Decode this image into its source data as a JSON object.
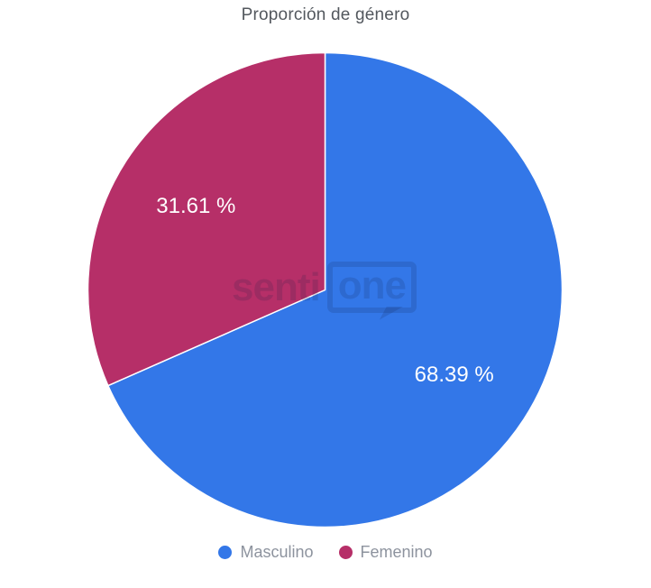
{
  "title": "Proporción de género",
  "watermark": {
    "part1": "senti",
    "part2": "one"
  },
  "legend": {
    "items": [
      {
        "label": "Masculino",
        "color": "#3377e8"
      },
      {
        "label": "Femenino",
        "color": "#b62f68"
      }
    ]
  },
  "chart_data": {
    "type": "pie",
    "title": "Proporción de género",
    "categories": [
      "Masculino",
      "Femenino"
    ],
    "values": [
      68.39,
      31.61
    ],
    "unit": "%",
    "slice_labels": [
      "68.39 %",
      "31.61 %"
    ],
    "colors": [
      "#3377e8",
      "#b62f68"
    ],
    "start_angle_deg": 0,
    "direction": "clockwise",
    "legend_position": "bottom",
    "slice_label_color": "#ffffff",
    "separator_color": "#ffffff"
  }
}
